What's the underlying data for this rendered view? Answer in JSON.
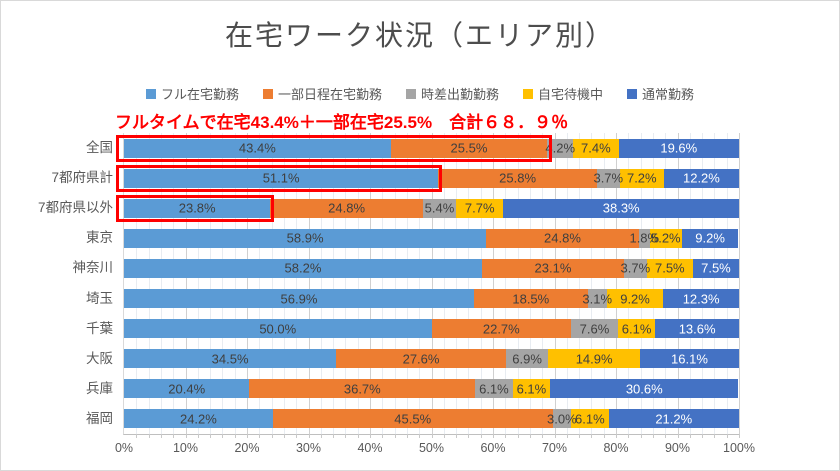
{
  "window": {
    "background": "#ffffff",
    "border_color": "#d9d9d9"
  },
  "title": "在宅ワーク状況（エリア別）",
  "annotation": {
    "text": "フルタイムで在宅43.4%＋一部在宅25.5%　合計６８．９％",
    "color": "#ff0000"
  },
  "legend": {
    "items": [
      {
        "label": "フル在宅勤務",
        "color": "#5B9BD5"
      },
      {
        "label": "一部日程在宅勤務",
        "color": "#ED7D31"
      },
      {
        "label": "時差出勤勤務",
        "color": "#A5A5A5"
      },
      {
        "label": "自宅待機中",
        "color": "#FFC000"
      },
      {
        "label": "通常勤務",
        "color": "#4472C4"
      }
    ]
  },
  "chart_data": {
    "type": "bar",
    "stacked": true,
    "orientation": "horizontal",
    "title": "在宅ワーク状況（エリア別）",
    "legend_position": "top",
    "categories": [
      "全国",
      "7都府県計",
      "7都府県以外",
      "東京",
      "神奈川",
      "埼玉",
      "千葉",
      "大阪",
      "兵庫",
      "福岡"
    ],
    "series": [
      {
        "name": "フル在宅勤務",
        "color": "#5B9BD5",
        "label_color": "#3f3f3f",
        "values": [
          43.4,
          51.1,
          23.8,
          58.9,
          58.2,
          56.9,
          50.0,
          34.5,
          20.4,
          24.2
        ]
      },
      {
        "name": "一部日程在宅勤務",
        "color": "#ED7D31",
        "label_color": "#3f3f3f",
        "values": [
          25.5,
          25.8,
          24.8,
          24.8,
          23.1,
          18.5,
          22.7,
          27.6,
          36.7,
          45.5
        ]
      },
      {
        "name": "時差出勤勤務",
        "color": "#A5A5A5",
        "label_color": "#3f3f3f",
        "values": [
          4.2,
          3.7,
          5.4,
          1.8,
          3.7,
          3.1,
          7.6,
          6.9,
          6.1,
          3.0
        ]
      },
      {
        "name": "自宅待機中",
        "color": "#FFC000",
        "label_color": "#3f3f3f",
        "values": [
          7.4,
          7.2,
          7.7,
          5.2,
          7.5,
          9.2,
          6.1,
          14.9,
          6.1,
          6.1
        ]
      },
      {
        "name": "通常勤務",
        "color": "#4472C4",
        "label_color": "#ffffff",
        "values": [
          19.6,
          12.2,
          38.3,
          9.2,
          7.5,
          12.3,
          13.6,
          16.1,
          30.6,
          21.2
        ]
      }
    ],
    "value_suffix": "%",
    "x_ticks": [
      "0%",
      "10%",
      "20%",
      "30%",
      "40%",
      "50%",
      "60%",
      "70%",
      "80%",
      "90%",
      "100%"
    ],
    "xlim": [
      0,
      100
    ],
    "grid": {
      "minor_step": 2,
      "major_step": 10
    },
    "highlight_boxes": [
      {
        "category": "全国",
        "from": 0,
        "to": 68.9,
        "color": "#ff0000"
      },
      {
        "category": "7都府県計",
        "from": 0,
        "to": 51.1,
        "color": "#ff0000"
      },
      {
        "category": "7都府県以外",
        "from": 0,
        "to": 23.8,
        "color": "#ff0000"
      }
    ]
  }
}
